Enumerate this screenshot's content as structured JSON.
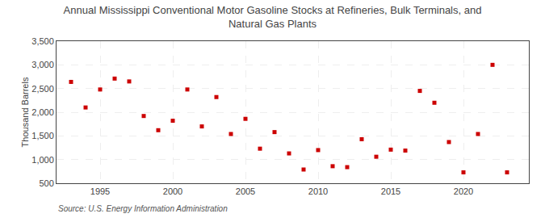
{
  "chart_data": {
    "type": "scatter",
    "title": "Annual Mississippi Conventional Motor Gasoline Stocks at Refineries, Bulk Terminals, and\nNatural Gas Plants",
    "ylabel": "Thousand Barrels",
    "annotations": [
      "Source: U.S. Energy Information Administration"
    ],
    "x": [
      1993,
      1994,
      1995,
      1996,
      1997,
      1998,
      1999,
      2000,
      2001,
      2002,
      2003,
      2004,
      2005,
      2006,
      2007,
      2008,
      2009,
      2010,
      2011,
      2012,
      2013,
      2014,
      2015,
      2016,
      2017,
      2018,
      2019,
      2020,
      2021,
      2022,
      2023
    ],
    "values": [
      2640,
      2100,
      2480,
      2710,
      2650,
      1920,
      1620,
      1820,
      2480,
      1700,
      2320,
      1540,
      1860,
      1230,
      1580,
      1130,
      790,
      1200,
      860,
      840,
      1430,
      1060,
      1210,
      1190,
      2450,
      2200,
      1370,
      730,
      1540,
      3000,
      730
    ],
    "color": "#cc0000",
    "marker": "square",
    "xlim": [
      1992,
      2024.5
    ],
    "xticks": [
      1995,
      2000,
      2005,
      2010,
      2015,
      2020
    ],
    "ylim": [
      500,
      3500
    ],
    "yticks": [
      500,
      {
        "value": 1000,
        "label": "1,000"
      },
      {
        "value": 1500,
        "label": "1,500"
      },
      {
        "value": 2000,
        "label": "2,000"
      },
      {
        "value": 2500,
        "label": "2,500"
      },
      {
        "value": 3000,
        "label": "3,000"
      },
      {
        "value": 3500,
        "label": "3,500"
      }
    ],
    "grid": true
  }
}
